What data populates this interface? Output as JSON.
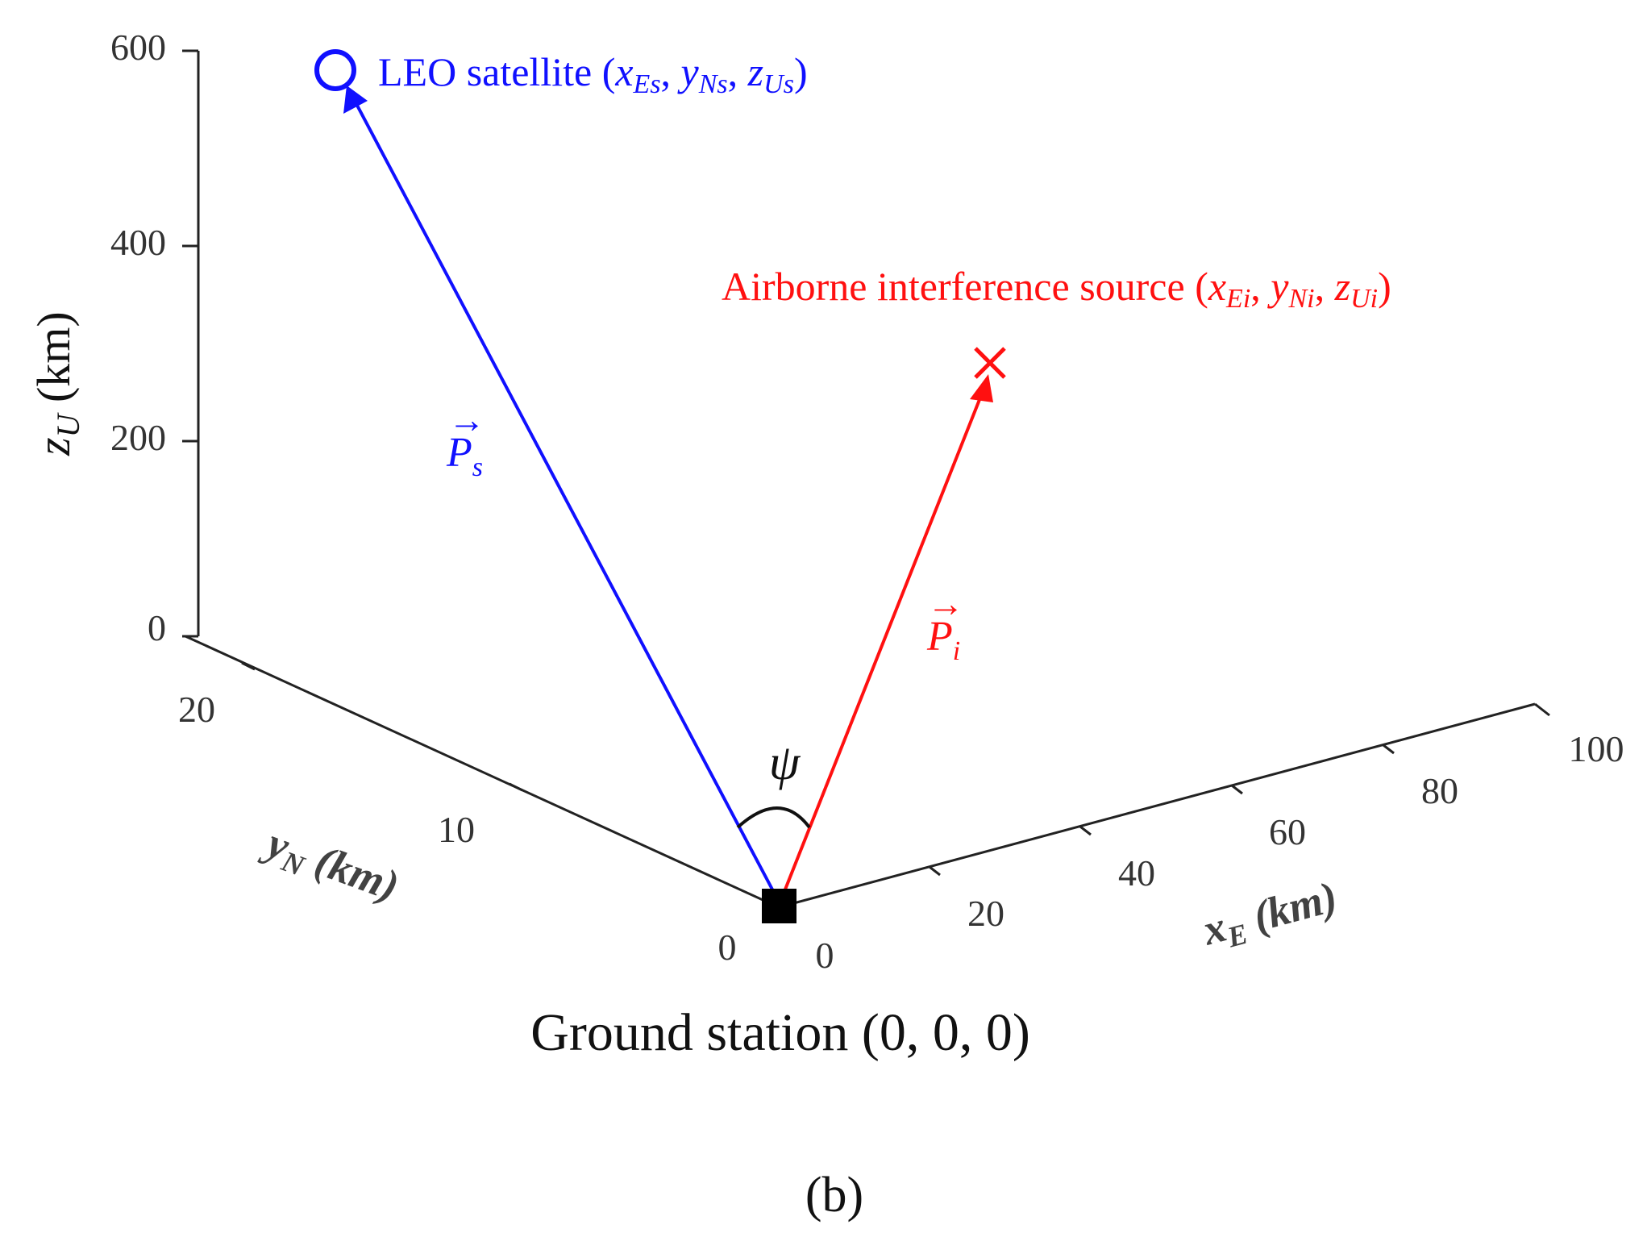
{
  "figure": {
    "panel_label": "(b)",
    "ground_station_label": "Ground station (0, 0, 0)",
    "psi_symbol": "ψ"
  },
  "axes": {
    "z": {
      "label_var": "z",
      "label_sub": "U",
      "label_unit": " (km)",
      "ticks": [
        "0",
        "200",
        "400",
        "600"
      ]
    },
    "x": {
      "label_var": "x",
      "label_sub": "E",
      "label_unit": " (km)",
      "ticks": [
        "0",
        "20",
        "40",
        "60",
        "80",
        "100"
      ]
    },
    "y": {
      "label_text": "y",
      "label_sub": "N",
      "label_unit": " (km)",
      "ticks": [
        "0",
        "10",
        "20"
      ]
    }
  },
  "satellite": {
    "name": "LEO satellite",
    "coord_open": " (",
    "x": "x",
    "x_sub": "Es",
    "y": "y",
    "y_sub": "Ns",
    "z": "z",
    "z_sub": "Us",
    "sep": ", ",
    "coord_close": ")",
    "vector_symbol": "P",
    "vector_sub": "s",
    "color": "#1010ff"
  },
  "interferer": {
    "name": "Airborne interference source",
    "coord_open": " (",
    "x": "x",
    "x_sub": "Ei",
    "y": "y",
    "y_sub": "Ni",
    "z": "z",
    "z_sub": "Ui",
    "sep": ", ",
    "coord_close": ")",
    "vector_symbol": "P",
    "vector_sub": "i",
    "color": "#ff1010"
  },
  "arrow_glyph": "→"
}
